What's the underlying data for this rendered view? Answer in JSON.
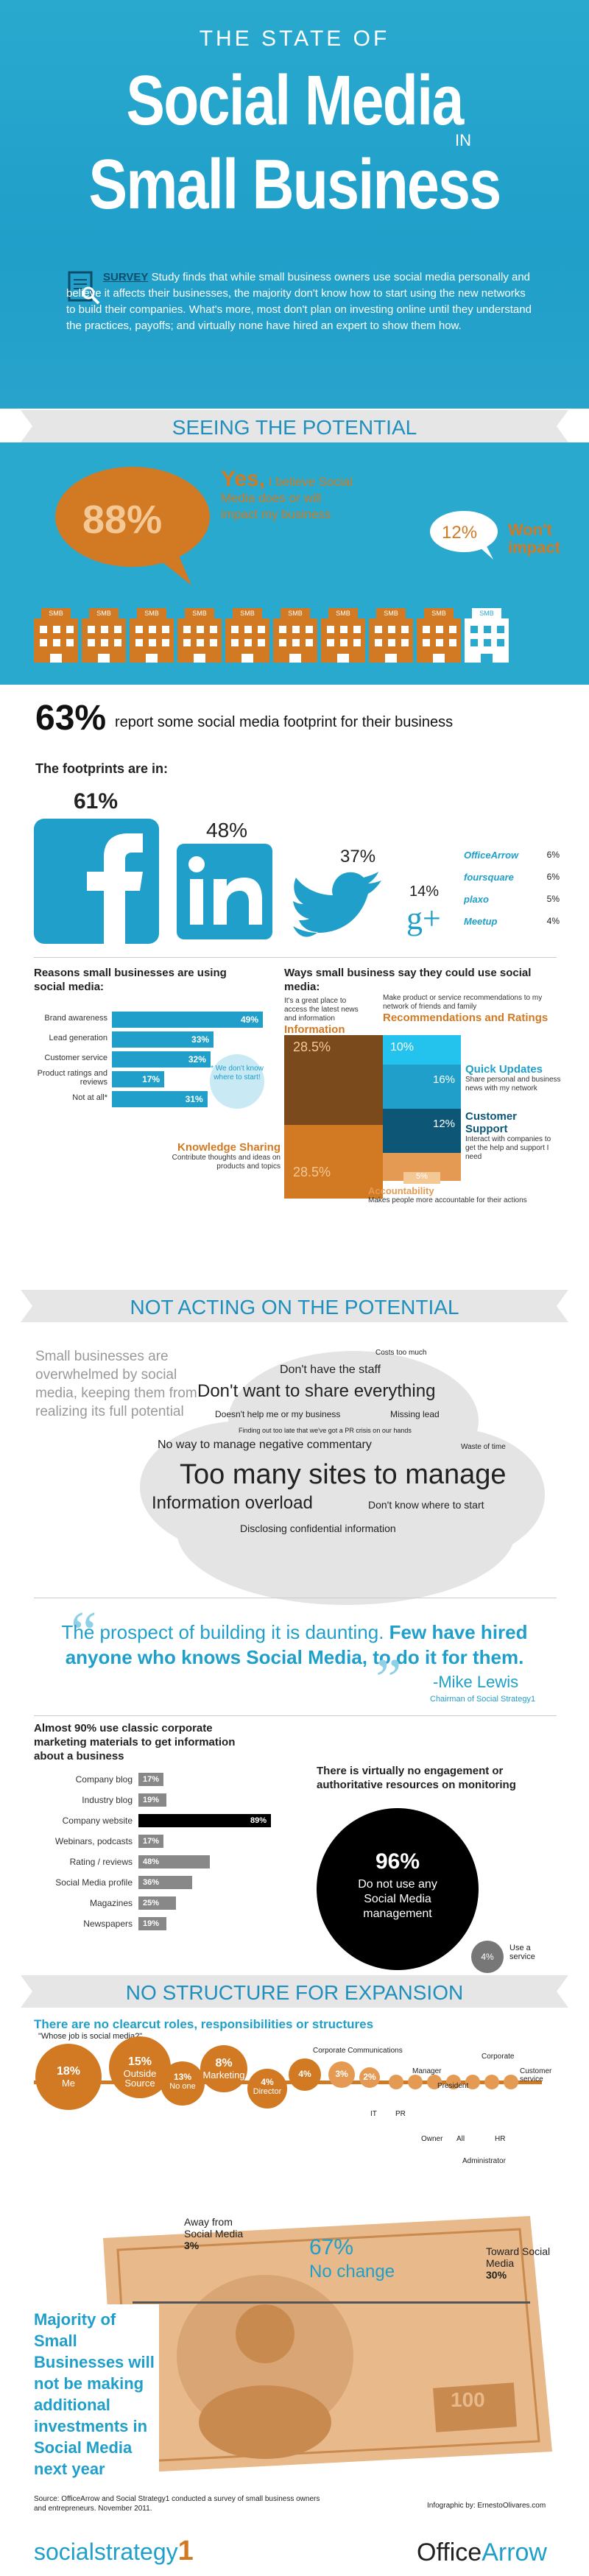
{
  "header": {
    "line1": "THE STATE OF",
    "line2": "Social Media",
    "line3_in": "IN",
    "line4": "Small Business"
  },
  "survey": {
    "keyword": "SURVEY",
    "text": "Study finds that while small business owners use social media personally and believe it affects their businesses, the majority don't know how to start using the new networks to build their companies. What's more, most don't plan on investing online until they understand the practices, payoffs; and virtually none have hired an expert to show them how."
  },
  "section1": {
    "title": "SEEING THE POTENTIAL",
    "yes_pct": "88%",
    "yes_label": "Yes,",
    "yes_text": "I believe Social Media does or will impact my business",
    "no_pct": "12%",
    "no_label": "Won't impact",
    "building_label": "SMB",
    "footprint_pct": "63%",
    "footprint_text": "report some social media footprint for their business",
    "footprints_title": "The footprints are in:",
    "facebook_pct": "61%",
    "linkedin_pct": "48%",
    "twitter_pct": "37%",
    "gplus_pct": "14%",
    "others": [
      {
        "name": "OfficeArrow",
        "pct": "6%"
      },
      {
        "name": "foursquare",
        "pct": "6%"
      },
      {
        "name": "plaxo",
        "pct": "5%"
      },
      {
        "name": "Meetup",
        "pct": "4%"
      }
    ]
  },
  "reasons": {
    "title": "Reasons small businesses are using social media:",
    "items": [
      {
        "label": "Brand awareness",
        "value": 49,
        "text": "49%"
      },
      {
        "label": "Lead generation",
        "value": 33,
        "text": "33%"
      },
      {
        "label": "Customer service",
        "value": 32,
        "text": "32%"
      },
      {
        "label": "Product ratings and reviews",
        "value": 17,
        "text": "17%"
      },
      {
        "label": "Not at all*",
        "value": 31,
        "text": "31%"
      }
    ],
    "note": "* We don't know where to start!"
  },
  "ways": {
    "title": "Ways small business say they could use social media:",
    "info_text": "It's a great place to access the latest news and information",
    "info_label": "Information",
    "rec_text": "Make product or service recommendations to my network of friends and family",
    "rec_label": "Recommendations and Ratings",
    "quick_label": "Quick Updates",
    "quick_text": "Share personal and business news with my network",
    "support_label": "Customer Support",
    "support_text": "Interact with companies to get the help and support I need",
    "knowledge_label": "Knowledge Sharing",
    "knowledge_text": "Contribute thoughts and ideas on products and topics",
    "account_label": "Accountability",
    "account_text": "Makes people more accountable for their actions",
    "v_info": "28.5%",
    "v_rec": "10%",
    "v_quick": "16%",
    "v_support": "12%",
    "v_knowledge": "28.5%",
    "v_account": "5%"
  },
  "section2": {
    "title": "NOT ACTING ON THE POTENTIAL",
    "overwhelmed": "Small businesses are overwhelmed by social media, keeping them from realizing its full potential",
    "cloud": {
      "costs": "Costs too much",
      "staff": "Don't have the staff",
      "share": "Don't want to share everything",
      "help": "Doesn't help me or my business",
      "lead": "Missing lead",
      "pr": "Finding out too late that we've got a PR crisis on our hands",
      "negative": "No way to manage negative commentary",
      "waste": "Waste of time",
      "toomany": "Too many sites to manage",
      "overload": "Information overload",
      "start": "Don't know where to start",
      "confidential": "Disclosing confidential information"
    },
    "quote": "The prospect of building it is daunting.",
    "quote_bold": "Few have hired anyone who knows Social Media, to do it for them.",
    "quote_author": "-Mike Lewis",
    "quote_role": "Chairman of Social Strategy1",
    "classic_title": "Almost 90% use classic corporate marketing materials to get information about a business",
    "classic": [
      {
        "label": "Company blog",
        "value": 17,
        "text": "17%"
      },
      {
        "label": "Industry blog",
        "value": 19,
        "text": "19%"
      },
      {
        "label": "Company website",
        "value": 89,
        "text": "89%"
      },
      {
        "label": "Webinars, podcasts",
        "value": 17,
        "text": "17%"
      },
      {
        "label": "Rating / reviews",
        "value": 48,
        "text": "48%"
      },
      {
        "label": "Social Media profile",
        "value": 36,
        "text": "36%"
      },
      {
        "label": "Magazines",
        "value": 25,
        "text": "25%"
      },
      {
        "label": "Newspapers",
        "value": 19,
        "text": "19%"
      }
    ],
    "engage_title": "There is virtually no engagement or authoritative resources on monitoring",
    "engage_pct": "96%",
    "engage_text": "Do not use any Social Media management",
    "service_pct": "4%",
    "service_text": "Use a service"
  },
  "section3": {
    "title": "NO STRUCTURE FOR EXPANSION",
    "roles_title": "There are no clearcut roles, responsibilities or structures",
    "roles_sub": "\"Whose job is social media?\"",
    "roles": [
      {
        "pct": "18%",
        "name": "Me"
      },
      {
        "pct": "15%",
        "name": "Outside Source"
      },
      {
        "pct": "13%",
        "name": "No one"
      },
      {
        "pct": "8%",
        "name": "Marketing"
      },
      {
        "pct": "4%",
        "name": "Director"
      },
      {
        "pct": "4%",
        "name": ""
      },
      {
        "pct": "3%",
        "name": ""
      },
      {
        "pct": "2%",
        "name": ""
      }
    ],
    "role_labels": {
      "corp_comm": "Corporate Communications",
      "it": "IT",
      "pr": "PR",
      "manager": "Manager",
      "president": "President",
      "owner": "Owner",
      "all": "All",
      "administrator": "Administrator",
      "corporate": "Corporate",
      "hr": "HR",
      "cust": "Customer service"
    },
    "majority": "Majority of Small Businesses will not be making additional investments in Social Media next year",
    "away_label": "Away from Social Media",
    "away_pct": "3%",
    "nochange_pct": "67%",
    "nochange_label": "No change",
    "toward_label": "Toward Social Media",
    "toward_pct": "30%",
    "bill_num": "100"
  },
  "footer": {
    "source": "Source: OfficeArrow and Social Strategy1 conducted a survey of small business owners and entrepreneurs. November 2011.",
    "infographic": "Infographic by: ErnestoOlivares.com",
    "logo_left": "socialstrategy",
    "logo_left_num": "1",
    "logo_right_a": "Office",
    "logo_right_b": "Arrow"
  },
  "colors": {
    "blue": "#1f9fc9",
    "orange": "#d27a23",
    "dark": "#222222",
    "grey": "#888888"
  }
}
